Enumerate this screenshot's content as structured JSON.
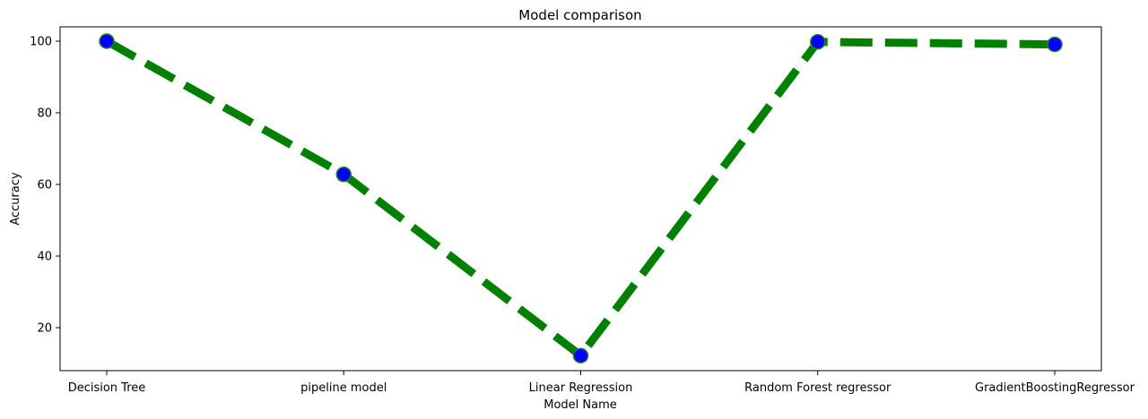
{
  "chart_data": {
    "type": "line",
    "title": "Model comparison",
    "xlabel": "Model Name",
    "ylabel": "Accuracy",
    "categories": [
      "Decision Tree",
      "pipeline model",
      "Linear Regression",
      "Random Forest regressor",
      "GradientBoostingRegressor"
    ],
    "series": [
      {
        "values": [
          100,
          62.8,
          12.2,
          99.8,
          99.1
        ]
      }
    ],
    "ylim": [
      8,
      104
    ],
    "yticks": [
      20,
      40,
      60,
      80,
      100
    ],
    "grid": false,
    "line_color": "#008000",
    "line_style": "dashed",
    "marker_color": "#0000ff",
    "marker_edge_color": "#2e7d32"
  }
}
